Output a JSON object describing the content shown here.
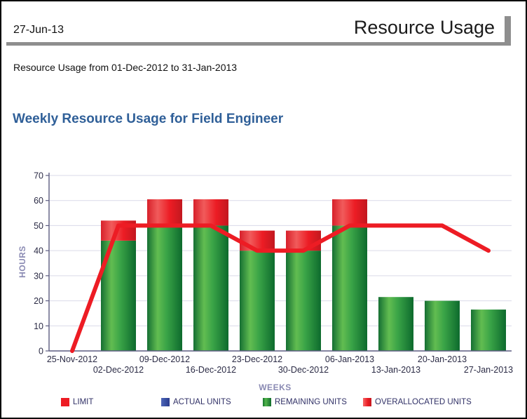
{
  "header": {
    "date": "27-Jun-13",
    "title": "Resource Usage"
  },
  "subtitle": "Resource Usage from 01-Dec-2012 to 31-Jan-2013",
  "chart_title": "Weekly Resource Usage for Field Engineer",
  "colors": {
    "title_blue": "#2F5F98",
    "axis_title_purple": "#8A8AB3",
    "tick_label": "#2B2B45",
    "gridline": "#DADAE8",
    "axis_line": "#5C5C80",
    "header_rule_gray": "#8E8E8E",
    "limit_red": "#ED1C24",
    "actual_blue": "#3D55A8",
    "remaining_green_dark": "#15742F",
    "remaining_green_light": "#52B54B",
    "overallocated_red": "#ED1C24"
  },
  "chart_data": {
    "type": "bar",
    "title": "Weekly Resource Usage for Field Engineer",
    "xlabel": "WEEKS",
    "ylabel": "HOURS",
    "ylim": [
      0,
      70
    ],
    "y_ticks": [
      0,
      10,
      20,
      30,
      40,
      50,
      60,
      70
    ],
    "grid": true,
    "legend_position": "bottom",
    "categories": [
      "25-Nov-2012",
      "02-Dec-2012",
      "09-Dec-2012",
      "16-Dec-2012",
      "23-Dec-2012",
      "30-Dec-2012",
      "06-Jan-2013",
      "13-Jan-2013",
      "20-Jan-2013",
      "27-Jan-2013"
    ],
    "label_rows": {
      "top": [
        0,
        2,
        4,
        6,
        8
      ],
      "bottom": [
        1,
        3,
        5,
        7,
        9
      ]
    },
    "series": [
      {
        "name": "LIMIT",
        "render": "line",
        "color": "#ED1C24",
        "values": [
          0,
          50,
          50,
          50,
          40,
          40,
          50,
          50,
          50,
          40
        ]
      },
      {
        "name": "ACTUAL UNITS",
        "render": "bar",
        "color": "#3D55A8",
        "values": [
          0,
          0,
          0,
          0,
          0,
          0,
          0,
          0,
          0,
          0
        ]
      },
      {
        "name": "REMAINING UNITS",
        "render": "bar-stack",
        "color": "#1E9C3F",
        "values": [
          0,
          44,
          50,
          50,
          40,
          40,
          50,
          21.5,
          20,
          16.5
        ]
      },
      {
        "name": "OVERALLOCATED UNITS",
        "render": "bar-stack",
        "color": "#ED1C24",
        "values": [
          0,
          8,
          10.5,
          10.5,
          8,
          8,
          10.5,
          0,
          0,
          0
        ]
      }
    ]
  }
}
